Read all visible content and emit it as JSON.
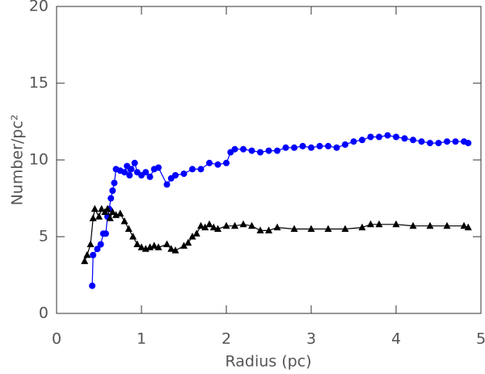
{
  "chart_data": {
    "type": "scatter-line",
    "xlabel": "Radius (pc)",
    "ylabel": "Number/pc²",
    "xlim": [
      0,
      5
    ],
    "ylim": [
      0,
      20
    ],
    "xticks": [
      0,
      1,
      2,
      3,
      4,
      5
    ],
    "yticks": [
      0,
      5,
      10,
      15,
      20
    ],
    "series": [
      {
        "color": "#0000ff",
        "marker": "circle",
        "x": [
          0.42,
          0.43,
          0.48,
          0.52,
          0.55,
          0.58,
          0.6,
          0.62,
          0.64,
          0.66,
          0.68,
          0.7,
          0.75,
          0.8,
          0.83,
          0.86,
          0.88,
          0.92,
          0.95,
          1.0,
          1.05,
          1.1,
          1.15,
          1.2,
          1.3,
          1.35,
          1.4,
          1.5,
          1.6,
          1.7,
          1.8,
          1.9,
          2.0,
          2.05,
          2.1,
          2.2,
          2.3,
          2.4,
          2.5,
          2.6,
          2.7,
          2.8,
          2.9,
          3.0,
          3.1,
          3.2,
          3.3,
          3.4,
          3.5,
          3.6,
          3.7,
          3.8,
          3.9,
          4.0,
          4.1,
          4.2,
          4.3,
          4.4,
          4.5,
          4.6,
          4.7,
          4.8,
          4.85
        ],
        "values": [
          1.8,
          3.8,
          4.2,
          4.5,
          5.2,
          5.2,
          6.3,
          6.8,
          7.5,
          8.0,
          8.5,
          9.4,
          9.3,
          9.2,
          9.6,
          9.0,
          9.4,
          9.8,
          9.2,
          9.0,
          9.2,
          8.9,
          9.4,
          9.5,
          8.4,
          8.8,
          9.0,
          9.1,
          9.4,
          9.4,
          9.8,
          9.7,
          9.8,
          10.5,
          10.7,
          10.7,
          10.6,
          10.5,
          10.6,
          10.6,
          10.8,
          10.8,
          10.9,
          10.8,
          10.9,
          10.9,
          10.8,
          11.0,
          11.2,
          11.3,
          11.5,
          11.5,
          11.6,
          11.5,
          11.4,
          11.3,
          11.2,
          11.1,
          11.1,
          11.2,
          11.2,
          11.2,
          11.1
        ]
      },
      {
        "color": "#000000",
        "marker": "triangle",
        "x": [
          0.33,
          0.36,
          0.4,
          0.43,
          0.45,
          0.5,
          0.53,
          0.57,
          0.6,
          0.63,
          0.66,
          0.7,
          0.75,
          0.8,
          0.85,
          0.9,
          0.95,
          1.0,
          1.05,
          1.1,
          1.15,
          1.2,
          1.3,
          1.35,
          1.4,
          1.5,
          1.55,
          1.6,
          1.65,
          1.7,
          1.75,
          1.8,
          1.85,
          1.9,
          2.0,
          2.1,
          2.2,
          2.3,
          2.4,
          2.5,
          2.6,
          2.8,
          3.0,
          3.2,
          3.4,
          3.6,
          3.7,
          3.8,
          4.0,
          4.2,
          4.4,
          4.6,
          4.8,
          4.85
        ],
        "values": [
          3.4,
          3.8,
          4.5,
          6.2,
          6.8,
          6.3,
          6.8,
          6.6,
          6.8,
          6.2,
          6.6,
          6.4,
          6.5,
          6.0,
          5.5,
          5.0,
          4.5,
          4.3,
          4.2,
          4.3,
          4.4,
          4.3,
          4.5,
          4.2,
          4.1,
          4.4,
          4.6,
          5.0,
          5.2,
          5.7,
          5.6,
          5.8,
          5.6,
          5.5,
          5.7,
          5.7,
          5.8,
          5.7,
          5.4,
          5.4,
          5.6,
          5.5,
          5.5,
          5.5,
          5.5,
          5.6,
          5.8,
          5.8,
          5.8,
          5.7,
          5.7,
          5.7,
          5.7,
          5.6
        ]
      }
    ]
  }
}
